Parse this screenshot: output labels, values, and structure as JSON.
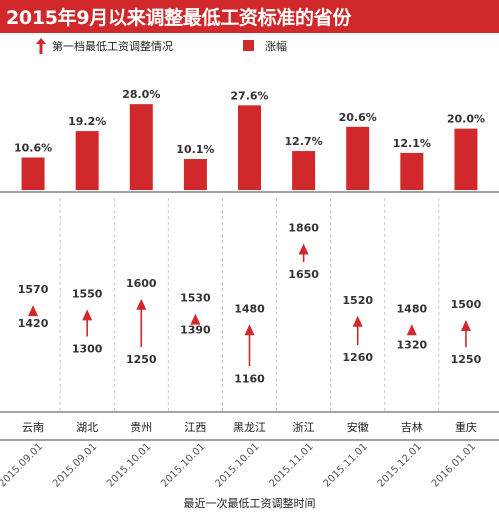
{
  "title": "2015年9月以来调整最低工资标准的省份",
  "legend": {
    "arrow_label": "第一档最低工资调整情况",
    "bar_label": "涨幅"
  },
  "xlabel": "最近一次最低工资调整时间",
  "colors": {
    "accent": "#d0282b",
    "text": "#333333",
    "grid": "#cccccc"
  },
  "chart_data": {
    "type": "bar",
    "title": "2015年9月以来调整最低工资标准的省份",
    "xlabel": "最近一次最低工资调整时间",
    "categories": [
      "云南",
      "湖北",
      "贵州",
      "江西",
      "黑龙江",
      "浙江",
      "安徽",
      "吉林",
      "重庆"
    ],
    "dates": [
      "2015.09.01",
      "2015.09.01",
      "2015.10.01",
      "2015.10.01",
      "2015.10.01",
      "2015.11.01",
      "2015.11.01",
      "2015.12.01",
      "2016.01.01"
    ],
    "series": [
      {
        "name": "涨幅",
        "values": [
          10.6,
          19.2,
          28.0,
          10.1,
          27.6,
          12.7,
          20.6,
          12.1,
          20.0
        ],
        "labels": [
          "10.6%",
          "19.2%",
          "28.0%",
          "10.1%",
          "27.6%",
          "12.7%",
          "20.6%",
          "12.1%",
          "20.0%"
        ]
      },
      {
        "name": "第一档最低工资调整情况",
        "from": [
          1420,
          1300,
          1250,
          1390,
          1160,
          1650,
          1260,
          1320,
          1250
        ],
        "to": [
          1570,
          1550,
          1600,
          1530,
          1480,
          1860,
          1520,
          1480,
          1500
        ]
      }
    ],
    "ylim_bars": [
      0,
      30
    ],
    "ylim_wage": [
      1100,
      1900
    ]
  }
}
